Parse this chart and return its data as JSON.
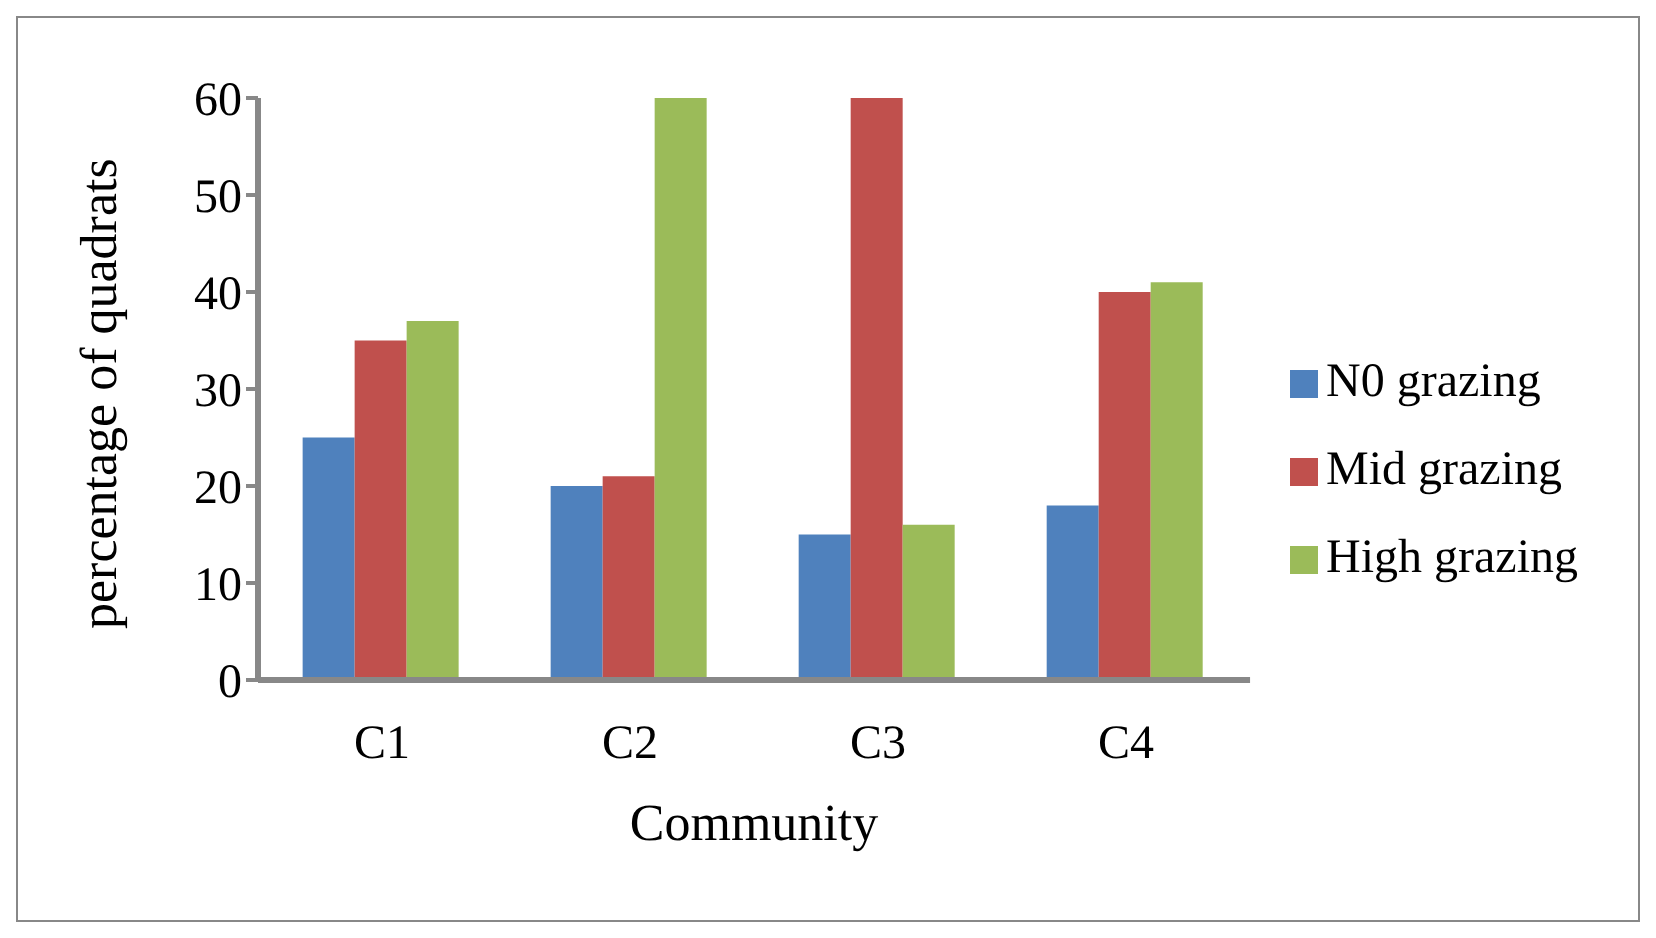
{
  "chart_data": {
    "type": "bar",
    "xlabel": "Community",
    "ylabel": "percentage  of quadrats",
    "categories": [
      "C1",
      "C2",
      "C3",
      "C4"
    ],
    "series": [
      {
        "name": "N0 grazing",
        "color": "#4f81bd",
        "values": [
          25,
          20,
          15,
          18
        ]
      },
      {
        "name": "Mid grazing",
        "color": "#c0504d",
        "values": [
          35,
          21,
          60,
          40
        ]
      },
      {
        "name": "High grazing",
        "color": "#9bbb59",
        "values": [
          37,
          60,
          16,
          41
        ]
      }
    ],
    "ylim": [
      0,
      60
    ],
    "yticks": [
      0,
      10,
      20,
      30,
      40,
      50,
      60
    ],
    "grid": false,
    "legend": "right"
  }
}
